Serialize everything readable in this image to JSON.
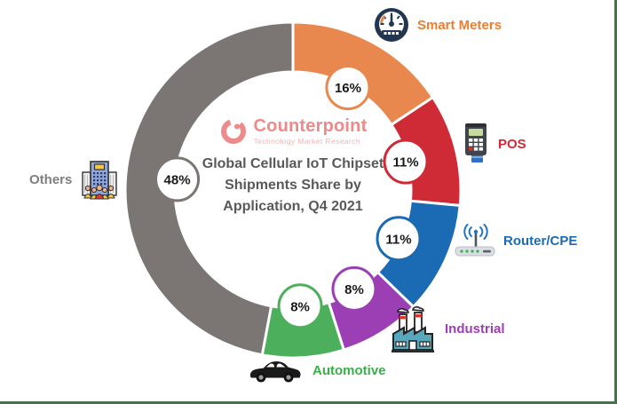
{
  "frame": {
    "background": "#FFFFFF",
    "border_color": "#47714F"
  },
  "center": {
    "logo": {
      "brand": "Counterpoint",
      "tagline": "Technology Market Research",
      "brand_color": "#ED8A8A",
      "tagline_color": "#F2B5B5"
    },
    "title_lines": [
      "Global Cellular IoT Chipset",
      "Shipments Share by",
      "Application, Q4 2021"
    ],
    "title_color": "#595959"
  },
  "chart_data": {
    "type": "pie",
    "subtype": "donut",
    "title": "Global Cellular IoT Chipset Shipments Share by Application, Q4 2021",
    "unit": "%",
    "start_angle_deg": 0,
    "direction": "clockwise",
    "gap_color": "#FFFFFF",
    "label_text_color": "#1A1A1A",
    "segments": [
      {
        "label": "Smart Meters",
        "value": 16,
        "percent_label": "16%",
        "color": "#E8884E",
        "text_color": "#ED7D31",
        "icon": "gauge-icon"
      },
      {
        "label": "POS",
        "value": 11,
        "percent_label": "11%",
        "color": "#CE2B37",
        "text_color": "#CE2B37",
        "icon": "pos-terminal-icon"
      },
      {
        "label": "Router/CPE",
        "value": 11,
        "percent_label": "11%",
        "color": "#1B6BB4",
        "text_color": "#1B6BB4",
        "icon": "router-icon"
      },
      {
        "label": "Industrial",
        "value": 8,
        "percent_label": "8%",
        "color": "#9C3FB4",
        "text_color": "#9C3FB4",
        "icon": "factory-icon"
      },
      {
        "label": "Automotive",
        "value": 8,
        "percent_label": "8%",
        "color": "#4CAF5C",
        "text_color": "#3BAE49",
        "icon": "car-icon"
      },
      {
        "label": "Others",
        "value": 48,
        "percent_label": "48%",
        "color": "#7B7674",
        "text_color": "#7F7F7F",
        "icon": "building-people-icon"
      }
    ]
  }
}
